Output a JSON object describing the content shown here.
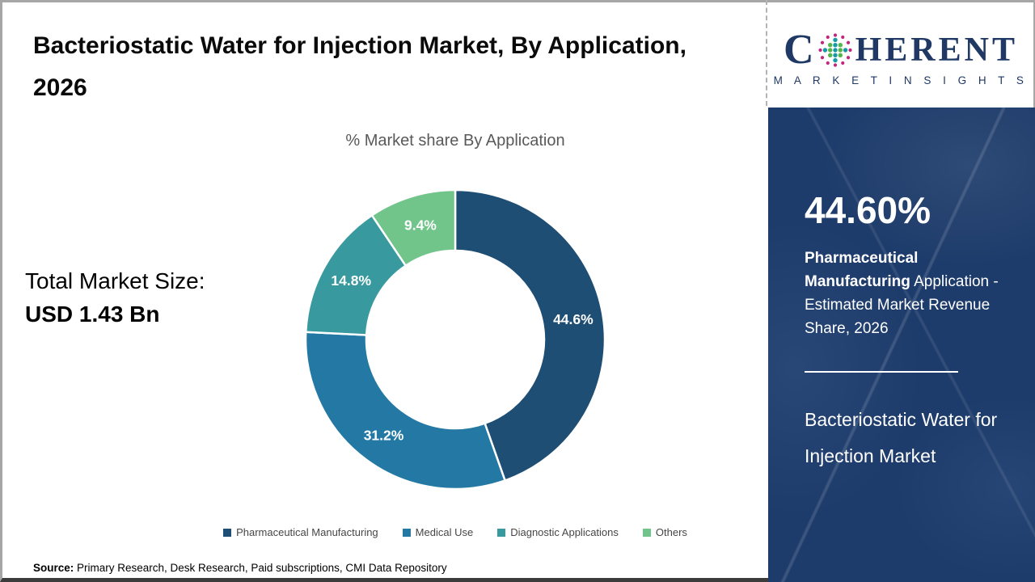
{
  "header": {
    "title": "Bacteriostatic Water for Injection Market, By Application, 2026"
  },
  "stats": {
    "label": "Total Market Size:",
    "value": "USD 1.43 Bn"
  },
  "chart_data": {
    "type": "pie",
    "donut": true,
    "title": "% Market share By Application",
    "categories": [
      "Pharmaceutical Manufacturing",
      "Medical Use",
      "Diagnostic Applications",
      "Others"
    ],
    "values": [
      44.6,
      31.2,
      14.8,
      9.4
    ],
    "labels": [
      "44.6%",
      "31.2%",
      "14.8%",
      "9.4%"
    ],
    "colors": [
      "#1f4e74",
      "#2379a4",
      "#38999f",
      "#71c58b"
    ],
    "start_angle_deg": 0,
    "direction": "clockwise",
    "legend_position": "bottom"
  },
  "legend_text_color": "#464646",
  "logo": {
    "c": "C",
    "rest": "HERENT",
    "subtitle": "M A R K E T   I N S I G H T S",
    "color": "#1f3864",
    "globe_icon_colors": {
      "ring": "#c2267d",
      "teal": "#169aa5",
      "green": "#53b54a"
    }
  },
  "side_panel": {
    "bg_color": "#1e3c6b",
    "headline": "44.60%",
    "highlight": "Pharmaceutical Manufacturing",
    "description": "Application - Estimated Market Revenue Share, 2026",
    "market_name": "Bacteriostatic Water for Injection Market"
  },
  "source": {
    "label": "Source:",
    "text": " Primary Research, Desk Research, Paid subscriptions, CMI Data Repository"
  }
}
